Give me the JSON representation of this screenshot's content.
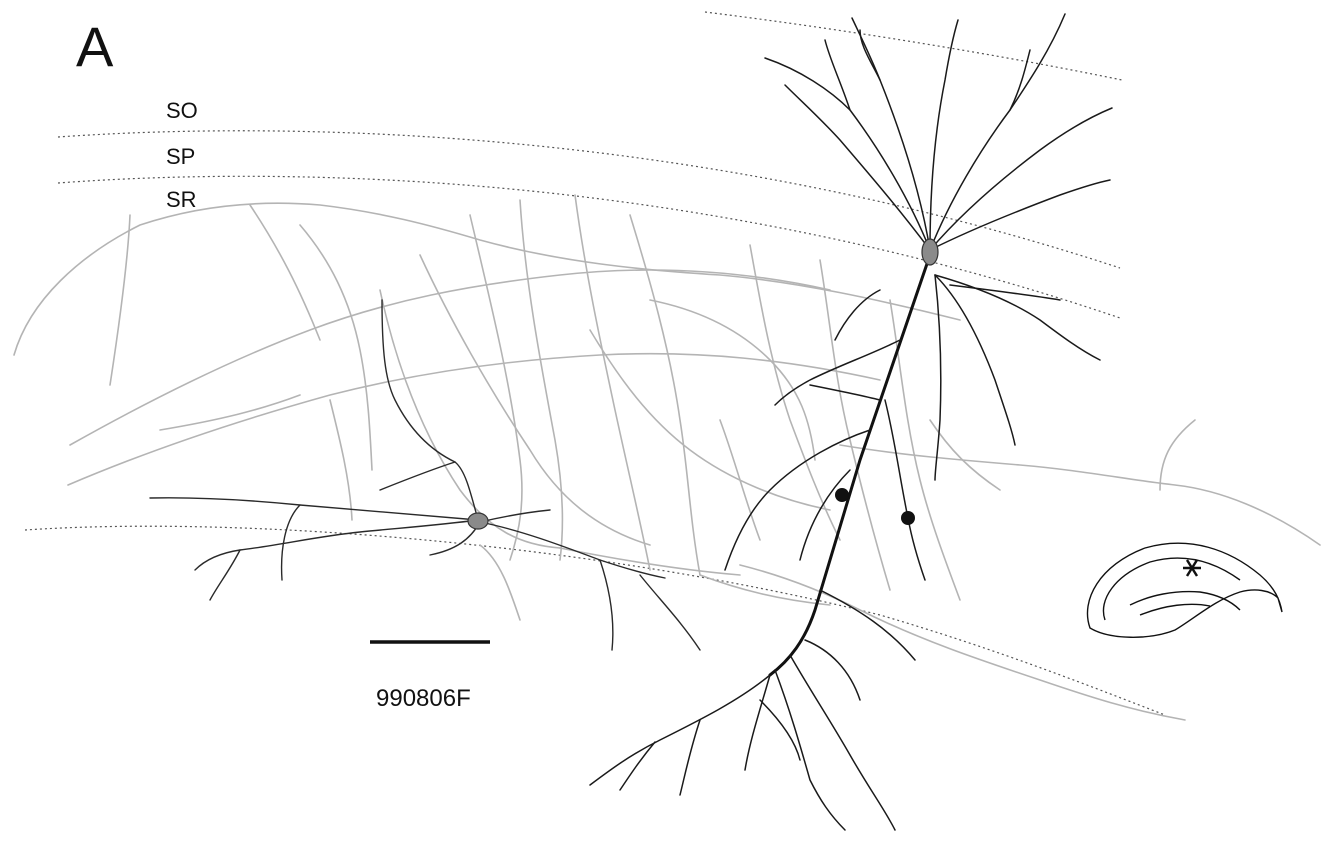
{
  "figure": {
    "panel_letter": "A",
    "layers": {
      "so": "SO",
      "sp": "SP",
      "sr": "SR"
    },
    "cell_id": "990806F",
    "colors": {
      "axon": "#b4b4b4",
      "dendrite": "#1a1a1a",
      "background": "#ffffff"
    },
    "icons": {
      "inset": "hippocampus-outline-icon",
      "location_marker": "asterisk-icon"
    }
  }
}
